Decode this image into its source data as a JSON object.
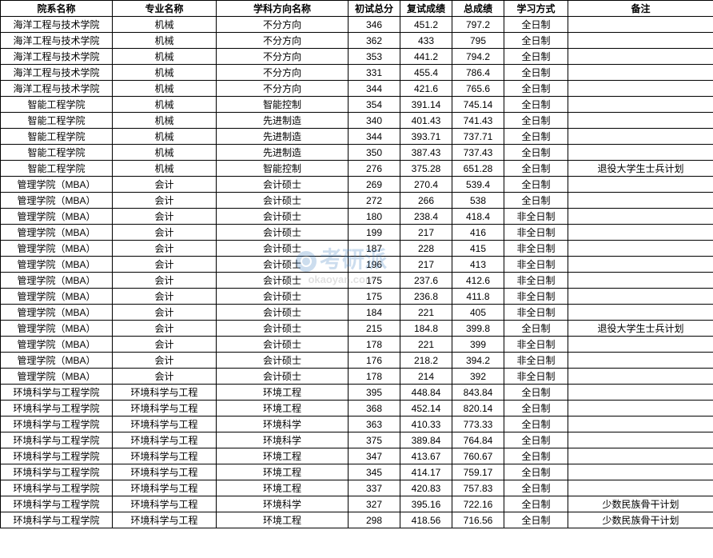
{
  "headers": {
    "dept": "院系名称",
    "major": "专业名称",
    "direction": "学科方向名称",
    "score1": "初试总分",
    "score2": "复试成绩",
    "score3": "总成绩",
    "mode": "学习方式",
    "note": "备注"
  },
  "rows": [
    {
      "dept": "海洋工程与技术学院",
      "major": "机械",
      "direction": "不分方向",
      "s1": "346",
      "s2": "451.2",
      "s3": "797.2",
      "mode": "全日制",
      "note": ""
    },
    {
      "dept": "海洋工程与技术学院",
      "major": "机械",
      "direction": "不分方向",
      "s1": "362",
      "s2": "433",
      "s3": "795",
      "mode": "全日制",
      "note": ""
    },
    {
      "dept": "海洋工程与技术学院",
      "major": "机械",
      "direction": "不分方向",
      "s1": "353",
      "s2": "441.2",
      "s3": "794.2",
      "mode": "全日制",
      "note": ""
    },
    {
      "dept": "海洋工程与技术学院",
      "major": "机械",
      "direction": "不分方向",
      "s1": "331",
      "s2": "455.4",
      "s3": "786.4",
      "mode": "全日制",
      "note": ""
    },
    {
      "dept": "海洋工程与技术学院",
      "major": "机械",
      "direction": "不分方向",
      "s1": "344",
      "s2": "421.6",
      "s3": "765.6",
      "mode": "全日制",
      "note": ""
    },
    {
      "dept": "智能工程学院",
      "major": "机械",
      "direction": "智能控制",
      "s1": "354",
      "s2": "391.14",
      "s3": "745.14",
      "mode": "全日制",
      "note": ""
    },
    {
      "dept": "智能工程学院",
      "major": "机械",
      "direction": "先进制造",
      "s1": "340",
      "s2": "401.43",
      "s3": "741.43",
      "mode": "全日制",
      "note": ""
    },
    {
      "dept": "智能工程学院",
      "major": "机械",
      "direction": "先进制造",
      "s1": "344",
      "s2": "393.71",
      "s3": "737.71",
      "mode": "全日制",
      "note": ""
    },
    {
      "dept": "智能工程学院",
      "major": "机械",
      "direction": "先进制造",
      "s1": "350",
      "s2": "387.43",
      "s3": "737.43",
      "mode": "全日制",
      "note": ""
    },
    {
      "dept": "智能工程学院",
      "major": "机械",
      "direction": "智能控制",
      "s1": "276",
      "s2": "375.28",
      "s3": "651.28",
      "mode": "全日制",
      "note": "退役大学生士兵计划"
    },
    {
      "dept": "管理学院（MBA）",
      "major": "会计",
      "direction": "会计硕士",
      "s1": "269",
      "s2": "270.4",
      "s3": "539.4",
      "mode": "全日制",
      "note": ""
    },
    {
      "dept": "管理学院（MBA）",
      "major": "会计",
      "direction": "会计硕士",
      "s1": "272",
      "s2": "266",
      "s3": "538",
      "mode": "全日制",
      "note": ""
    },
    {
      "dept": "管理学院（MBA）",
      "major": "会计",
      "direction": "会计硕士",
      "s1": "180",
      "s2": "238.4",
      "s3": "418.4",
      "mode": "非全日制",
      "note": ""
    },
    {
      "dept": "管理学院（MBA）",
      "major": "会计",
      "direction": "会计硕士",
      "s1": "199",
      "s2": "217",
      "s3": "416",
      "mode": "非全日制",
      "note": ""
    },
    {
      "dept": "管理学院（MBA）",
      "major": "会计",
      "direction": "会计硕士",
      "s1": "187",
      "s2": "228",
      "s3": "415",
      "mode": "非全日制",
      "note": ""
    },
    {
      "dept": "管理学院（MBA）",
      "major": "会计",
      "direction": "会计硕士",
      "s1": "196",
      "s2": "217",
      "s3": "413",
      "mode": "非全日制",
      "note": ""
    },
    {
      "dept": "管理学院（MBA）",
      "major": "会计",
      "direction": "会计硕士",
      "s1": "175",
      "s2": "237.6",
      "s3": "412.6",
      "mode": "非全日制",
      "note": ""
    },
    {
      "dept": "管理学院（MBA）",
      "major": "会计",
      "direction": "会计硕士",
      "s1": "175",
      "s2": "236.8",
      "s3": "411.8",
      "mode": "非全日制",
      "note": ""
    },
    {
      "dept": "管理学院（MBA）",
      "major": "会计",
      "direction": "会计硕士",
      "s1": "184",
      "s2": "221",
      "s3": "405",
      "mode": "非全日制",
      "note": ""
    },
    {
      "dept": "管理学院（MBA）",
      "major": "会计",
      "direction": "会计硕士",
      "s1": "215",
      "s2": "184.8",
      "s3": "399.8",
      "mode": "全日制",
      "note": "退役大学生士兵计划"
    },
    {
      "dept": "管理学院（MBA）",
      "major": "会计",
      "direction": "会计硕士",
      "s1": "178",
      "s2": "221",
      "s3": "399",
      "mode": "非全日制",
      "note": ""
    },
    {
      "dept": "管理学院（MBA）",
      "major": "会计",
      "direction": "会计硕士",
      "s1": "176",
      "s2": "218.2",
      "s3": "394.2",
      "mode": "非全日制",
      "note": ""
    },
    {
      "dept": "管理学院（MBA）",
      "major": "会计",
      "direction": "会计硕士",
      "s1": "178",
      "s2": "214",
      "s3": "392",
      "mode": "非全日制",
      "note": ""
    },
    {
      "dept": "环境科学与工程学院",
      "major": "环境科学与工程",
      "direction": "环境工程",
      "s1": "395",
      "s2": "448.84",
      "s3": "843.84",
      "mode": "全日制",
      "note": ""
    },
    {
      "dept": "环境科学与工程学院",
      "major": "环境科学与工程",
      "direction": "环境工程",
      "s1": "368",
      "s2": "452.14",
      "s3": "820.14",
      "mode": "全日制",
      "note": ""
    },
    {
      "dept": "环境科学与工程学院",
      "major": "环境科学与工程",
      "direction": "环境科学",
      "s1": "363",
      "s2": "410.33",
      "s3": "773.33",
      "mode": "全日制",
      "note": ""
    },
    {
      "dept": "环境科学与工程学院",
      "major": "环境科学与工程",
      "direction": "环境科学",
      "s1": "375",
      "s2": "389.84",
      "s3": "764.84",
      "mode": "全日制",
      "note": ""
    },
    {
      "dept": "环境科学与工程学院",
      "major": "环境科学与工程",
      "direction": "环境工程",
      "s1": "347",
      "s2": "413.67",
      "s3": "760.67",
      "mode": "全日制",
      "note": ""
    },
    {
      "dept": "环境科学与工程学院",
      "major": "环境科学与工程",
      "direction": "环境工程",
      "s1": "345",
      "s2": "414.17",
      "s3": "759.17",
      "mode": "全日制",
      "note": ""
    },
    {
      "dept": "环境科学与工程学院",
      "major": "环境科学与工程",
      "direction": "环境工程",
      "s1": "337",
      "s2": "420.83",
      "s3": "757.83",
      "mode": "全日制",
      "note": ""
    },
    {
      "dept": "环境科学与工程学院",
      "major": "环境科学与工程",
      "direction": "环境科学",
      "s1": "327",
      "s2": "395.16",
      "s3": "722.16",
      "mode": "全日制",
      "note": "少数民族骨干计划"
    },
    {
      "dept": "环境科学与工程学院",
      "major": "环境科学与工程",
      "direction": "环境工程",
      "s1": "298",
      "s2": "418.56",
      "s3": "716.56",
      "mode": "全日制",
      "note": "少数民族骨干计划"
    }
  ],
  "watermark": {
    "main": "考研派",
    "sub": "okaoyan.com"
  }
}
